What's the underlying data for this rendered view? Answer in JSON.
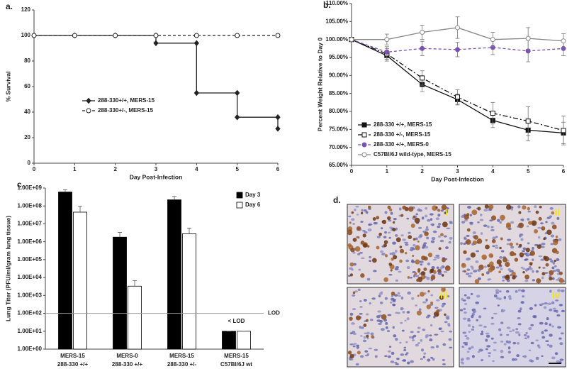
{
  "chart_data": [
    {
      "type": "line",
      "panel_label": "a.",
      "xlabel": "Day Post-Infection",
      "ylabel": "% Survival",
      "xlim": [
        0,
        6
      ],
      "xticks": [
        0,
        1,
        2,
        3,
        4,
        5,
        6
      ],
      "ylim": [
        0,
        120
      ],
      "yticks": [
        0,
        20,
        40,
        60,
        80,
        100,
        120
      ],
      "grid": false,
      "series": [
        {
          "name": "288-330+/+, MERS-15",
          "color": "#222222",
          "line_style": "solid",
          "marker": "diamond",
          "x": [
            0,
            1,
            2,
            3,
            3,
            4,
            4,
            5,
            5,
            6,
            6
          ],
          "values": [
            100,
            100,
            100,
            100,
            94,
            94,
            55,
            55,
            36,
            36,
            27
          ]
        },
        {
          "name": "288-330+/-, MERS-15",
          "color": "#222222",
          "line_style": "dashed",
          "marker": "open-circle",
          "x": [
            0,
            1,
            2,
            3,
            4,
            5,
            6
          ],
          "values": [
            100,
            100,
            100,
            100,
            100,
            100,
            100
          ]
        }
      ]
    },
    {
      "type": "line",
      "panel_label": "b.",
      "xlabel": "Day Post-Infection",
      "ylabel": "Percent Weight Relative to Day 0",
      "xlim": [
        0,
        6
      ],
      "xticks": [
        0,
        1,
        2,
        3,
        4,
        5,
        6
      ],
      "ylim": [
        65,
        110
      ],
      "yticks": [
        {
          "value": 65,
          "label": "65.00%"
        },
        {
          "value": 70,
          "label": "70.00%"
        },
        {
          "value": 75,
          "label": "75.00%"
        },
        {
          "value": 80,
          "label": "80.00%"
        },
        {
          "value": 85,
          "label": "85.00%"
        },
        {
          "value": 90,
          "label": "90.00%"
        },
        {
          "value": 95,
          "label": "95.00%"
        },
        {
          "value": 100,
          "label": "100.00%"
        },
        {
          "value": 105,
          "label": "105.00%"
        },
        {
          "value": 110,
          "label": "110.00%"
        }
      ],
      "grid": false,
      "x": [
        0,
        1,
        2,
        3,
        4,
        5,
        6
      ],
      "series": [
        {
          "name": "288-330 +/+, MERS-15",
          "color": "#111111",
          "line_style": "solid",
          "marker": "square",
          "values": [
            100,
            95.5,
            87.5,
            83.3,
            77.5,
            74.8,
            74.0
          ],
          "errors": [
            0,
            1.5,
            2,
            1.5,
            2,
            3,
            3
          ]
        },
        {
          "name": "288-330 +/-, MERS-15",
          "color": "#111111",
          "line_style": "dashdot",
          "marker": "open-square",
          "values": [
            100,
            96,
            89.3,
            84,
            79.5,
            77.3,
            74.7
          ],
          "errors": [
            0,
            1.5,
            2,
            2,
            3,
            4,
            4
          ]
        },
        {
          "name": "288-330 +/+, MERS-0",
          "color": "#7b52b0",
          "line_style": "dashed",
          "marker": "circle",
          "values": [
            100,
            96.5,
            97.5,
            97.2,
            97.8,
            96.8,
            97.5
          ],
          "errors": [
            0,
            1.5,
            2,
            2,
            2,
            3,
            2
          ]
        },
        {
          "name": "C57Bl/6J wild-type, MERS-15",
          "color": "#888888",
          "line_style": "solid",
          "marker": "open-circle",
          "values": [
            100,
            100,
            102,
            103.3,
            100,
            100.3,
            99.6
          ],
          "errors": [
            0,
            1.5,
            2,
            3,
            2,
            3,
            2
          ]
        }
      ]
    },
    {
      "type": "bar",
      "panel_label": "c.",
      "ylabel": "Lung Titer (PFU/ml/gram lung tissue)",
      "log_scale": true,
      "categories": [
        [
          "MERS-15",
          "288-330 +/+"
        ],
        [
          "MERS-0",
          "288-330 +/+"
        ],
        [
          "MERS-15",
          "288-330 +/-"
        ],
        [
          "MERS-15",
          "C57Bl/6J wt"
        ]
      ],
      "ylim": [
        1,
        1000000000
      ],
      "yticks": [
        {
          "value": 1,
          "label": "1.00E+00"
        },
        {
          "value": 10,
          "label": "1.00E+01"
        },
        {
          "value": 100,
          "label": "1.00E+02"
        },
        {
          "value": 1000,
          "label": "1.00E+03"
        },
        {
          "value": 10000,
          "label": "1.00E+04"
        },
        {
          "value": 100000,
          "label": "1.00E+05"
        },
        {
          "value": 1000000,
          "label": "1.00E+06"
        },
        {
          "value": 10000000,
          "label": "1.00E+07"
        },
        {
          "value": 100000000,
          "label": "1.00E+08"
        },
        {
          "value": 1000000000,
          "label": "1.00E+09"
        }
      ],
      "grid": false,
      "series": [
        {
          "name": "Day 3",
          "color": "#000000",
          "values": [
            600000000,
            1800000,
            220000000,
            10
          ],
          "errors": [
            200000000,
            1500000,
            120000000,
            0
          ]
        },
        {
          "name": "Day 6",
          "color": "#ffffff",
          "values": [
            45000000,
            3300,
            2800000,
            10
          ],
          "errors": [
            50000000,
            3500,
            3000000,
            0
          ]
        }
      ],
      "reference_lines": [
        {
          "value": 100,
          "label": "LOD"
        }
      ],
      "annotations": [
        "< LOD"
      ]
    }
  ],
  "histology": {
    "panel_label": "d.",
    "tiles": [
      "i",
      "ii",
      "iii",
      "iv"
    ]
  }
}
